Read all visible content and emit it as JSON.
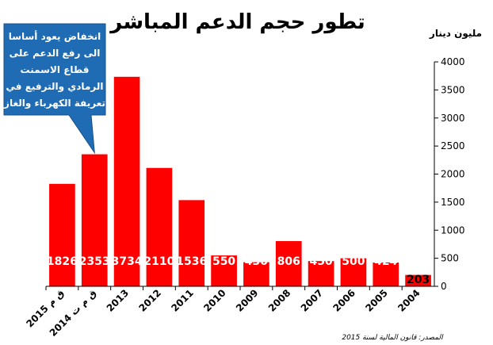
{
  "chart_data": {
    "type": "bar",
    "title": "تطور حجم الدعم المباشر",
    "ylabel": "مليون دينار",
    "ylim": [
      0,
      4000
    ],
    "yticks": [
      0,
      500,
      1000,
      1500,
      2000,
      2500,
      3000,
      3500,
      4000
    ],
    "categories": [
      "2015 ق م",
      "2014 ق م ت",
      "2013",
      "2012",
      "2011",
      "2010",
      "2009",
      "2008",
      "2007",
      "2006",
      "2005",
      "2004"
    ],
    "values": [
      1826,
      2353,
      3734,
      2110,
      1536,
      550,
      430,
      806,
      450,
      500,
      424,
      203
    ],
    "data_labels": [
      "1826",
      "2353",
      "3734",
      "2110",
      "1536",
      "550",
      "430",
      "806",
      "450",
      "500",
      "424",
      "203"
    ],
    "bar_color": "#ff0000",
    "grid": false,
    "callout": {
      "lines": [
        "انخفاض يعود أساسا",
        "الى رفع الدعم على",
        "قطاع الاسمنت",
        "الرمادي  والترفيع في",
        "تعريفة الكهرباء والغاز"
      ],
      "color": "#1f6cb4",
      "points_to": "2014 ق م ت"
    },
    "source": "المصدر: قانون المالية لسنة 2015"
  }
}
